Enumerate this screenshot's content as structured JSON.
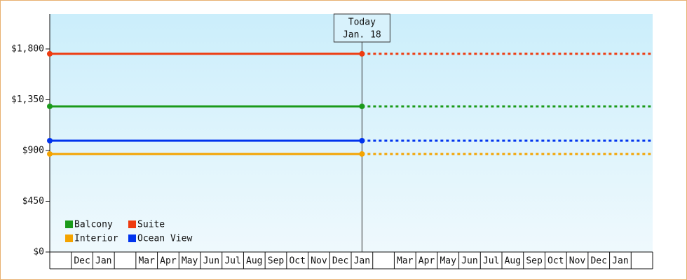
{
  "chart_data": {
    "type": "line",
    "categories": [
      null,
      "Dec",
      "Jan",
      null,
      "Mar",
      "Apr",
      "May",
      "Jun",
      "Jul",
      "Aug",
      "Sep",
      "Oct",
      "Nov",
      "Dec",
      "Jan",
      null,
      "Mar",
      "Apr",
      "May",
      "Jun",
      "Jul",
      "Aug",
      "Sep",
      "Oct",
      "Nov",
      "Dec",
      "Jan",
      null
    ],
    "series": [
      {
        "name": "Balcony",
        "color": "#1a9a1a",
        "values": [
          1291,
          1291,
          1291,
          1291,
          1291,
          1291,
          1291,
          1291,
          1291,
          1291,
          1291,
          1291,
          1291,
          1291,
          1291,
          1291,
          1291,
          1291,
          1291,
          1291,
          1291,
          1291,
          1291,
          1291,
          1291,
          1291,
          1291,
          1291
        ]
      },
      {
        "name": "Suite",
        "color": "#ee3b10",
        "values": [
          1757,
          1757,
          1757,
          1757,
          1757,
          1757,
          1757,
          1757,
          1757,
          1757,
          1757,
          1757,
          1757,
          1757,
          1757,
          1757,
          1757,
          1757,
          1757,
          1757,
          1757,
          1757,
          1757,
          1757,
          1757,
          1757,
          1757,
          1757
        ]
      },
      {
        "name": "Interior",
        "color": "#f4a300",
        "values": [
          869,
          869,
          869,
          869,
          869,
          869,
          869,
          869,
          869,
          869,
          869,
          869,
          869,
          869,
          869,
          869,
          869,
          869,
          869,
          869,
          869,
          869,
          869,
          869,
          869,
          869,
          869,
          869
        ]
      },
      {
        "name": "Ocean View",
        "color": "#0033ee",
        "values": [
          987,
          987,
          987,
          987,
          987,
          987,
          987,
          987,
          987,
          987,
          987,
          987,
          987,
          987,
          987,
          987,
          987,
          987,
          987,
          987,
          987,
          987,
          987,
          987,
          987,
          987,
          987,
          987
        ]
      }
    ],
    "today": {
      "lines": [
        "Today",
        "Jan. 18"
      ],
      "index": 14
    },
    "ylim": [
      0,
      2110
    ],
    "yticks": [
      {
        "value": 0,
        "label": "$0"
      },
      {
        "value": 450,
        "label": "$450"
      },
      {
        "value": 900,
        "label": "$900"
      },
      {
        "value": 1350,
        "label": "$1,350"
      },
      {
        "value": 1800,
        "label": "$1,800"
      }
    ],
    "legend": "lower left"
  }
}
